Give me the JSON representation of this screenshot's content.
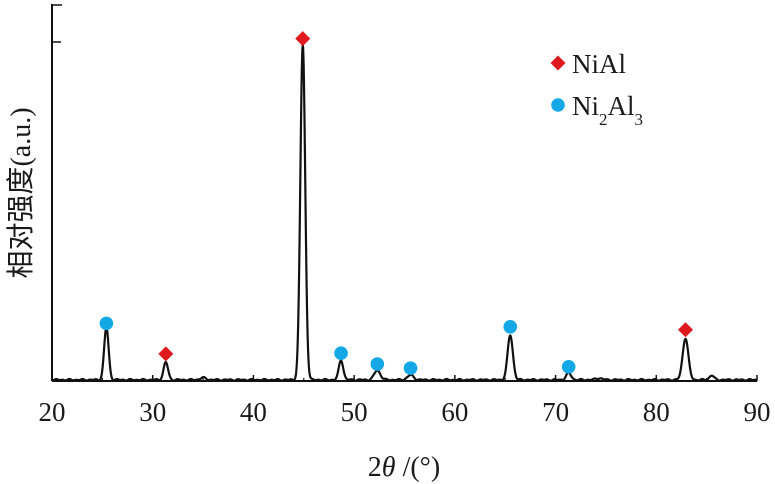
{
  "chart_data": {
    "type": "line",
    "xlabel_prefix": "2",
    "xlabel_theta": "θ",
    "xlabel_suffix": " /(°)",
    "ylabel": "相对强度(a.u.)",
    "xlim": [
      20,
      90
    ],
    "ylim": [
      0,
      100
    ],
    "xticks": [
      "20",
      "30",
      "40",
      "50",
      "60",
      "70",
      "80",
      "90"
    ],
    "grid": false,
    "legend_position": "top-right",
    "line_color": "#111111",
    "peaks": [
      {
        "x": 25.4,
        "height": 15.5,
        "width": 0.22
      },
      {
        "x": 31.3,
        "height": 5.2,
        "width": 0.22
      },
      {
        "x": 35.0,
        "height": 0.6,
        "width": 0.3
      },
      {
        "x": 44.9,
        "height": 99.0,
        "width": 0.24
      },
      {
        "x": 48.7,
        "height": 5.8,
        "width": 0.22
      },
      {
        "x": 52.3,
        "height": 2.8,
        "width": 0.3
      },
      {
        "x": 55.6,
        "height": 1.4,
        "width": 0.3
      },
      {
        "x": 65.5,
        "height": 13.2,
        "width": 0.26
      },
      {
        "x": 71.3,
        "height": 2.0,
        "width": 0.25
      },
      {
        "x": 74.3,
        "height": 0.5,
        "width": 0.3
      },
      {
        "x": 82.9,
        "height": 12.3,
        "width": 0.28
      },
      {
        "x": 85.5,
        "height": 1.3,
        "width": 0.22
      }
    ],
    "series": [
      {
        "name": "NiAl",
        "name_parts": [
          "NiAl",
          "",
          "",
          ""
        ],
        "marker": "diamond",
        "color": "#e0191f",
        "points": [
          [
            31.3,
            8.0
          ],
          [
            44.9,
            101.0
          ],
          [
            82.9,
            15.1
          ]
        ]
      },
      {
        "name": "Ni2Al3",
        "name_parts": [
          "Ni",
          "2",
          "Al",
          "3"
        ],
        "marker": "circle",
        "color": "#14a8e6",
        "points": [
          [
            25.4,
            17.0
          ],
          [
            48.7,
            8.2
          ],
          [
            52.3,
            5.0
          ],
          [
            55.6,
            3.8
          ],
          [
            65.5,
            16.0
          ],
          [
            71.3,
            4.2
          ]
        ]
      }
    ]
  }
}
